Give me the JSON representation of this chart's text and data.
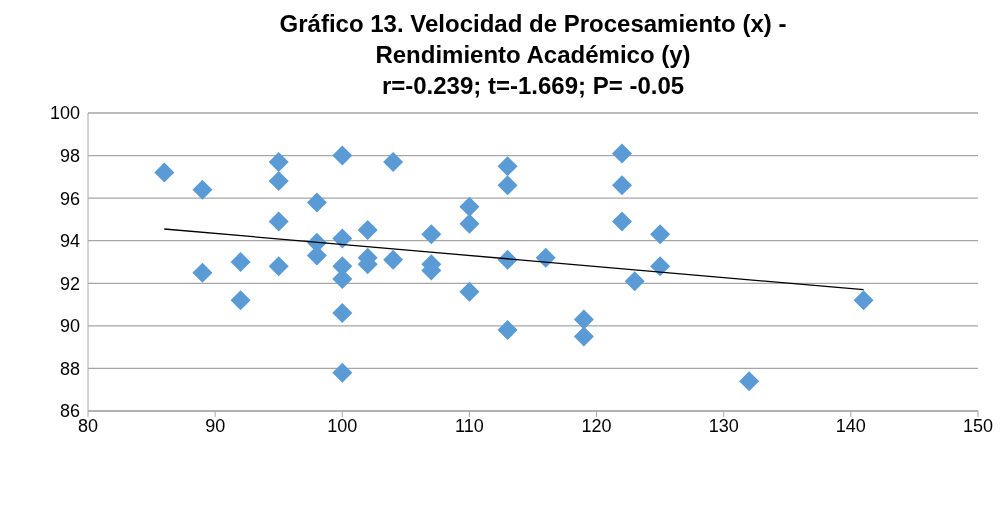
{
  "chart_data": {
    "type": "scatter",
    "title": "Gráfico 13. Velocidad de Procesamiento (x) -\nRendimiento Académico (y)\nr=-0.239; t=-1.669; P= -0.05",
    "xlim": [
      80,
      150
    ],
    "xticks": [
      80,
      90,
      100,
      110,
      120,
      130,
      140,
      150
    ],
    "ylim": [
      86,
      100
    ],
    "yticks": [
      86,
      88,
      90,
      92,
      94,
      96,
      98,
      100
    ],
    "grid": "y",
    "marker": "diamond",
    "series": [
      {
        "color": "#5b9bd5",
        "x": [
          86,
          89,
          89,
          92,
          92,
          95,
          95,
          95,
          95,
          98,
          98,
          98,
          100,
          100,
          100,
          100,
          100,
          100,
          102,
          102,
          102,
          104,
          104,
          107,
          107,
          107,
          110,
          110,
          110,
          113,
          113,
          113,
          113,
          116,
          119,
          119,
          122,
          122,
          122,
          123,
          125,
          125,
          132,
          141
        ],
        "values": [
          97.2,
          96.4,
          92.5,
          93.0,
          91.2,
          97.7,
          96.8,
          94.9,
          92.8,
          95.8,
          93.9,
          93.3,
          98.0,
          94.1,
          92.8,
          92.2,
          90.6,
          87.8,
          94.5,
          93.2,
          92.9,
          97.7,
          93.1,
          94.3,
          92.9,
          92.6,
          95.6,
          94.8,
          91.6,
          97.5,
          96.6,
          93.1,
          89.8,
          93.2,
          90.3,
          89.5,
          98.1,
          96.6,
          94.9,
          92.1,
          94.3,
          92.8,
          87.4,
          91.2
        ]
      },
      {
        "type": "line",
        "color": "#000000",
        "x": [
          86,
          141
        ],
        "values": [
          94.55,
          91.7
        ],
        "marker": "none",
        "line_style": "solid"
      }
    ]
  }
}
